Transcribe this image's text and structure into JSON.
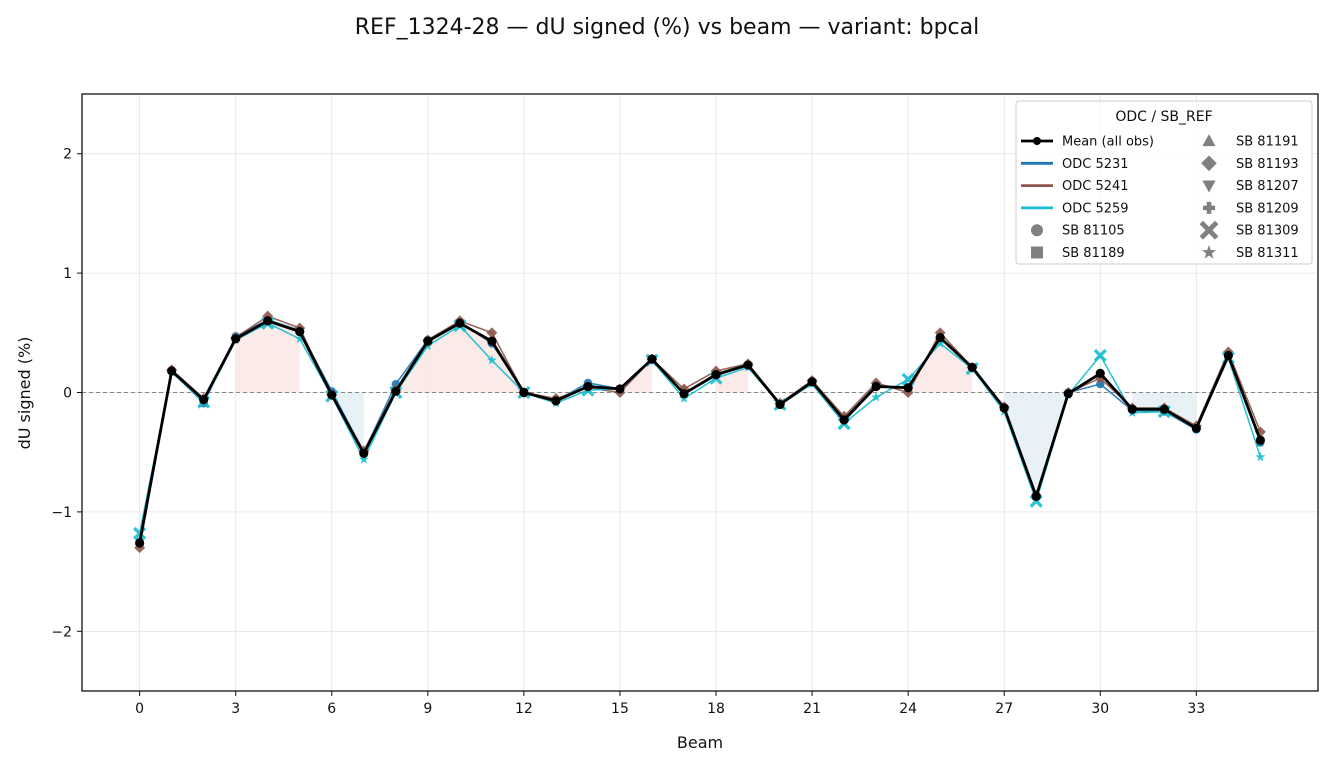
{
  "chart_data": {
    "type": "line",
    "title": "REF_1324-28  —  dU signed (%) vs beam  —  variant: bpcal",
    "xlabel": "Beam",
    "ylabel": "dU signed (%)",
    "xlim": [
      -1.8,
      36.8
    ],
    "ylim": [
      -2.5,
      2.5
    ],
    "xticks": [
      0,
      3,
      6,
      9,
      12,
      15,
      18,
      21,
      24,
      27,
      30,
      33
    ],
    "xtick_labels": [
      "0",
      "3",
      "6",
      "9",
      "12",
      "15",
      "18",
      "21",
      "24",
      "27",
      "30",
      "33"
    ],
    "yticks": [
      -2,
      -1,
      0,
      1,
      2
    ],
    "ytick_labels": [
      "−2",
      "−1",
      "0",
      "1",
      "2"
    ],
    "grid": true,
    "reference_line_y": 0,
    "legend_title": "ODC / SB_REF",
    "legend_position": "top-right",
    "x": [
      0,
      1,
      2,
      3,
      4,
      5,
      6,
      7,
      8,
      9,
      10,
      11,
      12,
      13,
      14,
      15,
      16,
      17,
      18,
      19,
      20,
      21,
      22,
      23,
      24,
      25,
      26,
      27,
      28,
      29,
      30,
      31,
      32,
      33,
      34,
      35
    ],
    "mean": {
      "name": "Mean (all obs)",
      "color": "#000000",
      "values": [
        -1.26,
        0.18,
        -0.06,
        0.45,
        0.6,
        0.51,
        -0.02,
        -0.51,
        0.01,
        0.43,
        0.58,
        0.43,
        0.0,
        -0.07,
        0.05,
        0.03,
        0.28,
        -0.01,
        0.15,
        0.23,
        -0.1,
        0.09,
        -0.23,
        0.05,
        0.04,
        0.46,
        0.21,
        -0.13,
        -0.87,
        -0.01,
        0.16,
        -0.14,
        -0.14,
        -0.3,
        0.31,
        -0.4
      ]
    },
    "series": [
      {
        "name": "ODC 5231",
        "color": "#1f77b4",
        "values": [
          -1.25,
          0.18,
          -0.09,
          0.47,
          0.61,
          0.52,
          0.01,
          -0.5,
          0.07,
          0.44,
          0.59,
          0.41,
          0.0,
          -0.07,
          0.08,
          0.03,
          0.28,
          -0.01,
          0.14,
          0.23,
          -0.1,
          0.09,
          -0.22,
          0.06,
          0.04,
          0.46,
          0.21,
          -0.13,
          -0.87,
          0.0,
          0.07,
          -0.15,
          -0.16,
          -0.31,
          0.31,
          -0.42
        ]
      },
      {
        "name": "ODC 5241",
        "color": "#8c564b",
        "values": [
          -1.3,
          0.19,
          -0.05,
          0.46,
          0.64,
          0.54,
          -0.02,
          -0.49,
          0.02,
          0.44,
          0.6,
          0.5,
          0.0,
          -0.05,
          0.04,
          0.0,
          0.28,
          0.03,
          0.18,
          0.24,
          -0.09,
          0.1,
          -0.2,
          0.08,
          0.0,
          0.5,
          0.21,
          -0.12,
          -0.86,
          0.0,
          0.12,
          -0.13,
          -0.13,
          -0.28,
          0.34,
          -0.33
        ]
      },
      {
        "name": "ODC 5259",
        "color": "#17becf",
        "values": [
          -1.18,
          0.17,
          -0.08,
          0.44,
          0.58,
          0.45,
          -0.03,
          -0.56,
          0.0,
          0.39,
          0.56,
          0.27,
          0.0,
          -0.09,
          0.02,
          0.03,
          0.27,
          -0.05,
          0.12,
          0.21,
          -0.1,
          0.07,
          -0.26,
          -0.04,
          0.11,
          0.41,
          0.2,
          -0.16,
          -0.91,
          -0.02,
          0.31,
          -0.17,
          -0.16,
          -0.3,
          0.29,
          -0.54
        ]
      }
    ],
    "markers": [
      {
        "name": "SB 81105",
        "shape": "circle"
      },
      {
        "name": "SB 81189",
        "shape": "square"
      },
      {
        "name": "SB 81191",
        "shape": "triangle-up"
      },
      {
        "name": "SB 81193",
        "shape": "diamond"
      },
      {
        "name": "SB 81207",
        "shape": "triangle-down"
      },
      {
        "name": "SB 81209",
        "shape": "plus"
      },
      {
        "name": "SB 81309",
        "shape": "x"
      },
      {
        "name": "SB 81311",
        "shape": "star"
      }
    ],
    "fill_colors": {
      "positive": "#fbe9e5",
      "negative": "#e6eff4"
    }
  }
}
